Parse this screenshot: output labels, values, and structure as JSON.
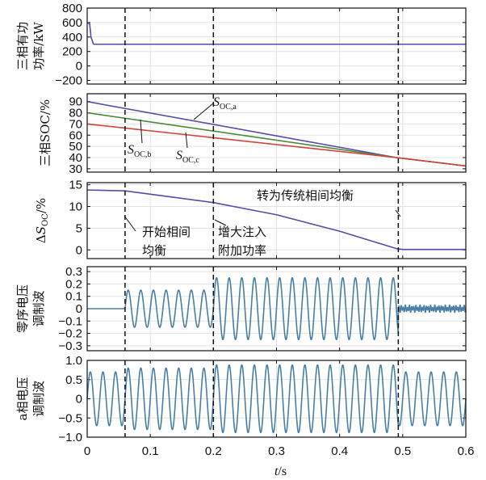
{
  "chart_data": [
    {
      "id": "power",
      "type": "line",
      "ylabel": "三相有功\n功率/kW",
      "ylim": [
        -250,
        800
      ],
      "yticks": [
        800,
        600,
        400,
        200,
        0,
        -200
      ],
      "ytick_labels": [
        "800",
        "600",
        "400",
        "200",
        "0",
        "−200"
      ],
      "series": [
        {
          "color": "#5b4aa7",
          "x": [
            0,
            0.004,
            0.006,
            0.01,
            0.6
          ],
          "y": [
            600,
            580,
            400,
            300,
            300
          ]
        }
      ]
    },
    {
      "id": "soc",
      "type": "line",
      "ylabel": "三相SOC/%",
      "ylim": [
        27,
        97
      ],
      "yticks": [
        90,
        80,
        70,
        60,
        50,
        40,
        30
      ],
      "ytick_labels": [
        "90",
        "80",
        "70",
        "60",
        "50",
        "40",
        "30"
      ],
      "series": [
        {
          "name": "S_OC,a",
          "color": "#5b4aa7",
          "x": [
            0,
            0.49,
            0.6
          ],
          "y": [
            90,
            40,
            32.5
          ]
        },
        {
          "name": "S_OC,b",
          "color": "#4b8a3c",
          "x": [
            0,
            0.49,
            0.6
          ],
          "y": [
            80,
            40,
            32.5
          ]
        },
        {
          "name": "S_OC,c",
          "color": "#d0443b",
          "x": [
            0,
            0.49,
            0.6
          ],
          "y": [
            70,
            40,
            32.5
          ]
        }
      ]
    },
    {
      "id": "dsoc",
      "type": "line",
      "ylabel": "ΔS_OC/%",
      "ylim": [
        -2,
        15.5
      ],
      "yticks": [
        15,
        10,
        5,
        0
      ],
      "ytick_labels": [
        "15",
        "10",
        "5",
        "0"
      ],
      "series": [
        {
          "color": "#5b4aa7",
          "x": [
            0,
            0.06,
            0.2,
            0.3,
            0.4,
            0.49,
            0.5,
            0.6
          ],
          "y": [
            13.8,
            13.6,
            10.9,
            8.1,
            4.3,
            0.3,
            0.1,
            0.1
          ]
        }
      ]
    },
    {
      "id": "zero_seq",
      "type": "line",
      "ylabel": "零序电压\n调制波",
      "ylim": [
        -0.34,
        0.34
      ],
      "yticks": [
        0.3,
        0.2,
        0.1,
        0,
        -0.1,
        -0.2,
        -0.3
      ],
      "ytick_labels": [
        "0.3",
        "0.2",
        "0.1",
        "0",
        "−0.1",
        "−0.2",
        "−0.3"
      ],
      "series": [
        {
          "color": "#4a7fa5",
          "segments": [
            {
              "x": [
                0,
                0.06
              ],
              "amplitude": 0,
              "frequency_hz": 50
            },
            {
              "x": [
                0.06,
                0.2
              ],
              "amplitude": 0.15,
              "frequency_hz": 50
            },
            {
              "x": [
                0.2,
                0.493
              ],
              "amplitude": 0.25,
              "frequency_hz": 50
            },
            {
              "x": [
                0.493,
                0.6
              ],
              "amplitude": 0.02,
              "frequency_hz": 300
            }
          ]
        }
      ]
    },
    {
      "id": "phase_a",
      "type": "line",
      "ylabel": "a相电压\n调制波",
      "xlabel": "t/s",
      "ylim": [
        -1.0,
        1.0
      ],
      "yticks": [
        1.0,
        0.5,
        0,
        -0.5,
        -1.0
      ],
      "ytick_labels": [
        "1.0",
        "0.5",
        "0",
        "−0.5",
        "−1.0"
      ],
      "xlim": [
        0,
        0.6
      ],
      "xticks": [
        0,
        0.1,
        0.2,
        0.3,
        0.4,
        0.5,
        0.6
      ],
      "xtick_labels": [
        "0",
        "0.1",
        "0.2",
        "0.3",
        "0.4",
        "0.5",
        "0.6"
      ],
      "series": [
        {
          "color": "#4a7fa5",
          "segments": [
            {
              "x": [
                0,
                0.06
              ],
              "amplitude": 0.7,
              "frequency_hz": 50
            },
            {
              "x": [
                0.06,
                0.2
              ],
              "amplitude": 0.8,
              "frequency_hz": 50
            },
            {
              "x": [
                0.2,
                0.493
              ],
              "amplitude": 0.88,
              "frequency_hz": 50
            },
            {
              "x": [
                0.493,
                0.6
              ],
              "amplitude": 0.7,
              "frequency_hz": 50
            }
          ]
        }
      ]
    }
  ],
  "events": [
    0.06,
    0.2,
    0.493
  ],
  "annotations": {
    "soc_a": {
      "main": "S",
      "sub": "OC,a"
    },
    "soc_b": {
      "main": "S",
      "sub": "OC,b"
    },
    "soc_c": {
      "main": "S",
      "sub": "OC,c"
    },
    "dsoc_ylabel": {
      "pre": "Δ",
      "main": "S",
      "sub": "OC",
      "post": "/%"
    },
    "start_balance": [
      "开始相间",
      "均衡"
    ],
    "increase_power": [
      "增大注入",
      "附加功率"
    ],
    "traditional": "转为传统相间均衡"
  },
  "xlabel": {
    "italic": "t",
    "rest": "/s"
  },
  "colors": {
    "grid": "#e3e3e3",
    "event_line": "#111111"
  }
}
